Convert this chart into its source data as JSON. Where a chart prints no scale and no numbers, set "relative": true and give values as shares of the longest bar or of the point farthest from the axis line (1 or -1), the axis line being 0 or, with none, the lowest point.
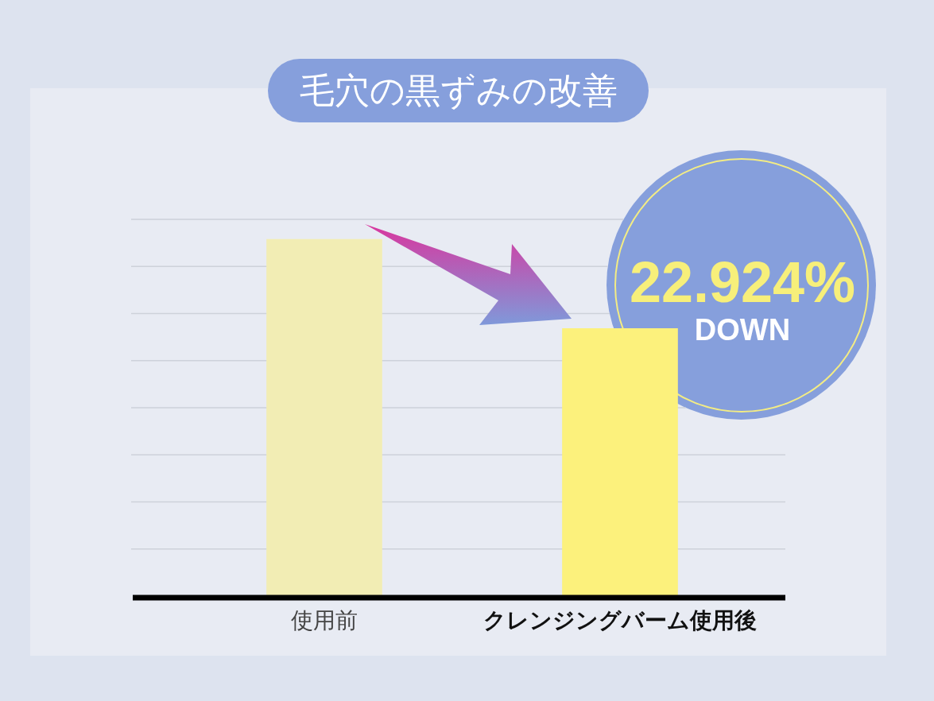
{
  "chart_data": {
    "type": "bar",
    "title": "毛穴の黒ずみの改善",
    "categories": [
      "使用前",
      "クレンジングバーム使用後"
    ],
    "values": [
      1,
      0.75
    ],
    "colors": [
      "#f2edb4",
      "#fcf17c"
    ],
    "relative": true,
    "grid": "y",
    "annotations": [
      "22.924%",
      "DOWN"
    ]
  }
}
